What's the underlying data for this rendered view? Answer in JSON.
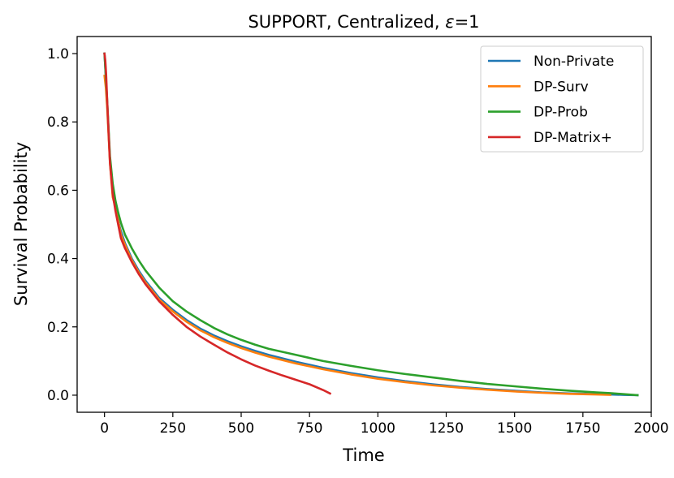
{
  "chart_data": {
    "type": "line",
    "title_main": "SUPPORT, Centralized, ",
    "title_eps": "ε",
    "title_tail": "=1",
    "xlabel": "Time",
    "ylabel": "Survival Probability",
    "xlim": [
      -100,
      2000
    ],
    "ylim": [
      -0.05,
      1.05
    ],
    "xticks": [
      0,
      250,
      500,
      750,
      1000,
      1250,
      1500,
      1750,
      2000
    ],
    "xtick_labels": [
      "0",
      "250",
      "500",
      "750",
      "1000",
      "1250",
      "1500",
      "1750",
      "2000"
    ],
    "yticks": [
      0.0,
      0.2,
      0.4,
      0.6,
      0.8,
      1.0
    ],
    "ytick_labels": [
      "0.0",
      "0.2",
      "0.4",
      "0.6",
      "0.8",
      "1.0"
    ],
    "grid": false,
    "legend_position": "top-right",
    "series": [
      {
        "name": "Non-Private",
        "color": "#1f77b4",
        "x": [
          0,
          5,
          10,
          15,
          20,
          30,
          40,
          50,
          60,
          75,
          100,
          125,
          150,
          175,
          200,
          250,
          300,
          350,
          400,
          450,
          500,
          550,
          600,
          700,
          800,
          900,
          1000,
          1100,
          1200,
          1300,
          1400,
          1500,
          1600,
          1700,
          1800,
          1850,
          1900,
          1950
        ],
        "y": [
          1.0,
          0.93,
          0.85,
          0.77,
          0.69,
          0.6,
          0.55,
          0.51,
          0.48,
          0.445,
          0.4,
          0.365,
          0.335,
          0.31,
          0.285,
          0.25,
          0.22,
          0.195,
          0.175,
          0.158,
          0.143,
          0.13,
          0.118,
          0.098,
          0.08,
          0.065,
          0.052,
          0.041,
          0.032,
          0.024,
          0.018,
          0.013,
          0.008,
          0.005,
          0.003,
          0.002,
          0.001,
          0.0
        ]
      },
      {
        "name": "DP-Surv",
        "color": "#ff7f0e",
        "x": [
          0,
          5,
          10,
          15,
          20,
          30,
          40,
          50,
          60,
          75,
          100,
          125,
          150,
          175,
          200,
          250,
          300,
          350,
          400,
          450,
          500,
          550,
          600,
          700,
          800,
          900,
          1000,
          1100,
          1200,
          1300,
          1400,
          1500,
          1600,
          1700,
          1800,
          1850
        ],
        "y": [
          0.935,
          0.9,
          0.84,
          0.76,
          0.68,
          0.58,
          0.55,
          0.51,
          0.47,
          0.44,
          0.395,
          0.36,
          0.33,
          0.305,
          0.28,
          0.245,
          0.215,
          0.19,
          0.17,
          0.153,
          0.138,
          0.125,
          0.113,
          0.093,
          0.076,
          0.061,
          0.048,
          0.038,
          0.029,
          0.022,
          0.016,
          0.011,
          0.007,
          0.004,
          0.002,
          0.001
        ]
      },
      {
        "name": "DP-Prob",
        "color": "#2ca02c",
        "x": [
          0,
          5,
          10,
          15,
          20,
          30,
          40,
          50,
          60,
          75,
          100,
          125,
          150,
          175,
          200,
          250,
          300,
          350,
          400,
          450,
          500,
          550,
          600,
          700,
          800,
          900,
          1000,
          1100,
          1200,
          1300,
          1400,
          1500,
          1600,
          1700,
          1800,
          1850,
          1900,
          1950
        ],
        "y": [
          1.0,
          0.93,
          0.86,
          0.78,
          0.7,
          0.62,
          0.57,
          0.535,
          0.505,
          0.47,
          0.43,
          0.395,
          0.365,
          0.34,
          0.315,
          0.275,
          0.245,
          0.22,
          0.197,
          0.178,
          0.162,
          0.148,
          0.136,
          0.118,
          0.1,
          0.086,
          0.073,
          0.062,
          0.052,
          0.042,
          0.033,
          0.026,
          0.019,
          0.013,
          0.008,
          0.006,
          0.003,
          0.0
        ]
      },
      {
        "name": "DP-Matrix+",
        "color": "#d62728",
        "x": [
          0,
          3,
          6,
          10,
          15,
          20,
          30,
          40,
          50,
          60,
          75,
          100,
          125,
          150,
          175,
          200,
          250,
          300,
          350,
          400,
          450,
          500,
          550,
          600,
          650,
          700,
          750,
          800,
          825
        ],
        "y": [
          1.0,
          0.98,
          0.94,
          0.86,
          0.77,
          0.68,
          0.59,
          0.54,
          0.5,
          0.46,
          0.43,
          0.39,
          0.355,
          0.325,
          0.3,
          0.275,
          0.235,
          0.2,
          0.172,
          0.148,
          0.125,
          0.105,
          0.087,
          0.072,
          0.058,
          0.045,
          0.032,
          0.015,
          0.005
        ]
      }
    ]
  }
}
